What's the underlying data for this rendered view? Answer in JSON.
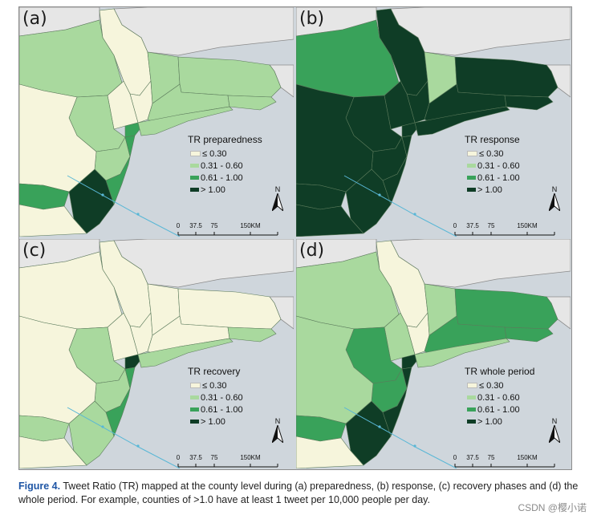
{
  "colors": {
    "class_1": "#f6f5dc",
    "class_2": "#a9d99e",
    "class_3": "#39a25a",
    "class_4": "#0f3d26",
    "ocean": "#cfd6dc",
    "outside_land": "#e6e6e6",
    "state_border": "#8a8a8a"
  },
  "legend_classes": [
    "≤ 0.30",
    "0.31 - 0.60",
    "0.61 - 1.00",
    "> 1.00"
  ],
  "scale_labels": [
    "0",
    "37.5",
    "75",
    "150KM"
  ],
  "north_label": "N",
  "panels": [
    {
      "label": "(a)",
      "legend_title": "TR preparedness",
      "phase": "preparedness"
    },
    {
      "label": "(b)",
      "legend_title": "TR response",
      "phase": "response"
    },
    {
      "label": "(c)",
      "legend_title": "TR recovery",
      "phase": "recovery"
    },
    {
      "label": "(d)",
      "legend_title": "TR whole period",
      "phase": "whole period"
    }
  ],
  "regions": [
    "ny_north",
    "ny_west",
    "ny_hudson",
    "ny_east",
    "ma_west",
    "ct",
    "ri",
    "ny_lower",
    "nyc",
    "long_island",
    "nj_north",
    "nj_central",
    "nj_shore",
    "nj_south",
    "pa_east",
    "pa_south",
    "de_md"
  ],
  "region_classes": {
    "preparedness": [
      1,
      2,
      1,
      2,
      2,
      2,
      2,
      1,
      3,
      2,
      2,
      2,
      3,
      4,
      1,
      3,
      1
    ],
    "response": [
      4,
      3,
      4,
      2,
      4,
      4,
      4,
      4,
      4,
      4,
      4,
      4,
      4,
      4,
      4,
      4,
      4
    ],
    "recovery": [
      1,
      1,
      1,
      1,
      1,
      1,
      2,
      1,
      4,
      2,
      2,
      2,
      3,
      2,
      1,
      2,
      1
    ],
    "whole period": [
      1,
      2,
      1,
      2,
      3,
      3,
      3,
      2,
      4,
      2,
      3,
      3,
      4,
      4,
      2,
      3,
      1
    ]
  },
  "caption": {
    "label": "Figure 4.",
    "text": " Tweet Ratio (TR) mapped at the county level during (a) preparedness, (b) response, (c) recovery phases and (d) the whole period. For example, counties of >1.0 have at least 1 tweet per 10,000 people per day."
  },
  "watermark": "CSDN @樱小诺"
}
